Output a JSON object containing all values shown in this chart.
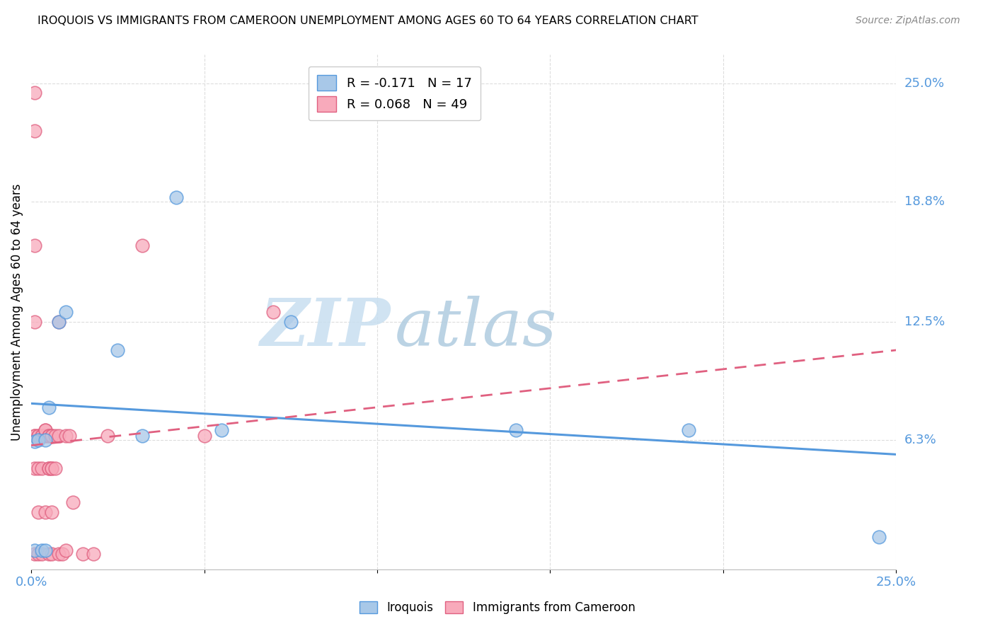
{
  "title": "IROQUOIS VS IMMIGRANTS FROM CAMEROON UNEMPLOYMENT AMONG AGES 60 TO 64 YEARS CORRELATION CHART",
  "source": "Source: ZipAtlas.com",
  "ylabel": "Unemployment Among Ages 60 to 64 years",
  "xlim": [
    0,
    0.25
  ],
  "ylim": [
    -0.005,
    0.265
  ],
  "yticks_right": [
    0.063,
    0.125,
    0.188,
    0.25
  ],
  "ytick_labels_right": [
    "6.3%",
    "12.5%",
    "18.8%",
    "25.0%"
  ],
  "watermark_zip": "ZIP",
  "watermark_atlas": "atlas",
  "legend_iroquois_R": "R = -0.171",
  "legend_iroquois_N": "N = 17",
  "legend_cameroon_R": "R = 0.068",
  "legend_cameroon_N": "N = 49",
  "iroquois_color": "#a8c8e8",
  "cameroon_color": "#f8aabb",
  "iroquois_line_color": "#5599dd",
  "cameroon_line_color": "#e06080",
  "blue_intercept": 0.082,
  "blue_slope": -0.107,
  "pink_intercept": 0.06,
  "pink_slope": 0.2,
  "blue_x": [
    0.001,
    0.001,
    0.002,
    0.003,
    0.004,
    0.004,
    0.005,
    0.008,
    0.01,
    0.025,
    0.032,
    0.042,
    0.055,
    0.075,
    0.14,
    0.19,
    0.245
  ],
  "blue_y": [
    0.005,
    0.062,
    0.063,
    0.005,
    0.063,
    0.005,
    0.08,
    0.125,
    0.13,
    0.11,
    0.065,
    0.19,
    0.068,
    0.125,
    0.068,
    0.068,
    0.012
  ],
  "pink_x": [
    0.001,
    0.001,
    0.001,
    0.001,
    0.001,
    0.001,
    0.001,
    0.001,
    0.002,
    0.002,
    0.002,
    0.002,
    0.002,
    0.003,
    0.003,
    0.003,
    0.003,
    0.004,
    0.004,
    0.004,
    0.004,
    0.004,
    0.005,
    0.005,
    0.005,
    0.005,
    0.005,
    0.006,
    0.006,
    0.006,
    0.006,
    0.006,
    0.006,
    0.007,
    0.007,
    0.008,
    0.008,
    0.008,
    0.009,
    0.01,
    0.01,
    0.011,
    0.012,
    0.015,
    0.018,
    0.022,
    0.032,
    0.05,
    0.07
  ],
  "pink_y": [
    0.245,
    0.225,
    0.165,
    0.125,
    0.065,
    0.065,
    0.048,
    0.003,
    0.065,
    0.065,
    0.048,
    0.025,
    0.003,
    0.065,
    0.065,
    0.048,
    0.003,
    0.065,
    0.065,
    0.068,
    0.068,
    0.025,
    0.065,
    0.065,
    0.048,
    0.048,
    0.003,
    0.065,
    0.065,
    0.048,
    0.048,
    0.025,
    0.003,
    0.065,
    0.048,
    0.125,
    0.065,
    0.003,
    0.003,
    0.065,
    0.005,
    0.065,
    0.03,
    0.003,
    0.003,
    0.065,
    0.165,
    0.065,
    0.13
  ],
  "background_color": "#ffffff",
  "grid_color": "#dddddd"
}
